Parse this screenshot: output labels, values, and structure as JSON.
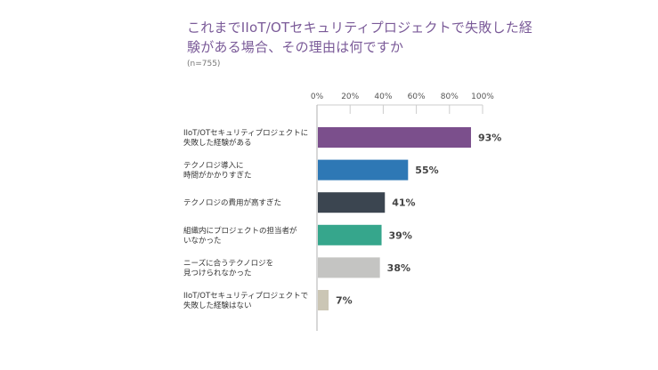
{
  "title": "これまでIIoT/OTセキュリティプロジェクトで失敗した経験がある場合、その理由は何ですか",
  "sample_note": "(n=755)",
  "chart_data": {
    "type": "bar",
    "orientation": "horizontal",
    "title": "これまでIIoT/OTセキュリティプロジェクトで失敗した経験がある場合、その理由は何ですか",
    "categories": [
      [
        "IIoT/OTセキュリティプロジェクトに",
        "失敗した経験がある"
      ],
      [
        "テクノロジ導入に",
        "時間がかかりすぎた"
      ],
      [
        "テクノロジの費用が高すぎた"
      ],
      [
        "組織内にプロジェクトの担当者が",
        "いなかった"
      ],
      [
        "ニーズに合うテクノロジを",
        "見つけられなかった"
      ],
      [
        "IIoT/OTセキュリティプロジェクトで",
        "失敗した経験はない"
      ]
    ],
    "values": [
      93,
      55,
      41,
      39,
      38,
      7
    ],
    "value_labels": [
      "93%",
      "55%",
      "41%",
      "39%",
      "38%",
      "7%"
    ],
    "colors": [
      "#7b4f8c",
      "#2e78b5",
      "#3b4550",
      "#36a68c",
      "#c4c4c2",
      "#cbc6b5"
    ],
    "xlim": [
      0,
      100
    ],
    "xticks": [
      0,
      20,
      40,
      60,
      80,
      100
    ],
    "xtick_labels": [
      "0%",
      "20%",
      "40%",
      "60%",
      "80%",
      "100%"
    ],
    "grid": true,
    "axis_color": "#cccccc"
  }
}
